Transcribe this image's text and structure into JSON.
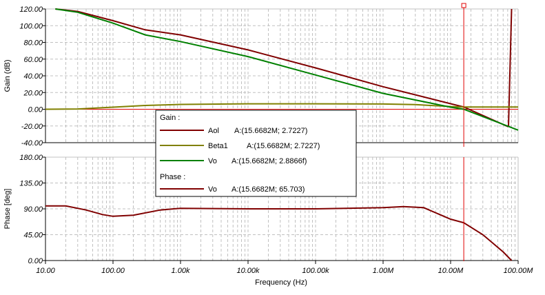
{
  "colors": {
    "aol": "#800000",
    "beta1": "#808000",
    "vo": "#008000",
    "phase_vo": "#800000",
    "cursor": "#e00000",
    "grid": "#c0c0c0"
  },
  "chart_data": [
    {
      "type": "line",
      "title": "",
      "ylabel": "Gain (dB)",
      "xscale": "log",
      "xlim": [
        10,
        100000000
      ],
      "ylim": [
        -40,
        120
      ],
      "yticks": [
        "120.00",
        "100.00",
        "80.00",
        "60.00",
        "40.00",
        "20.00",
        "0.00",
        "-20.00",
        "-40.00"
      ],
      "grid": true,
      "series": [
        {
          "name": "Aol",
          "x": [
            14,
            30,
            100,
            300,
            1000,
            10000,
            100000,
            1000000,
            10000000,
            15668200,
            70000000,
            72000000,
            80000000
          ],
          "values": [
            120,
            117,
            106,
            95,
            89,
            71,
            49.5,
            27,
            6.6,
            2.7227,
            -20.6,
            -20.6,
            120
          ]
        },
        {
          "name": "Beta1",
          "x": [
            10,
            30,
            100,
            300,
            1000,
            10000,
            100000,
            1000000,
            3000000,
            10000000,
            15668200,
            100000000
          ],
          "values": [
            0,
            0.3,
            2.5,
            4.5,
            5.8,
            6.5,
            6.5,
            6.3,
            5.5,
            3.2,
            2.7227,
            2.7
          ]
        },
        {
          "name": "Vo",
          "x": [
            14,
            30,
            100,
            300,
            1000,
            10000,
            100000,
            1000000,
            10000000,
            15668200,
            100000000
          ],
          "values": [
            120,
            116,
            103,
            89,
            81,
            63,
            41,
            19,
            2.5,
            0,
            -25
          ]
        }
      ]
    },
    {
      "type": "line",
      "xlabel": "Frequency (Hz)",
      "ylabel": "Phase [deg]",
      "xscale": "log",
      "xlim": [
        10,
        100000000
      ],
      "ylim": [
        0,
        180
      ],
      "yticks": [
        "180.00",
        "135.00",
        "90.00",
        "45.00",
        "0.00"
      ],
      "xticks": [
        "10.00",
        "100.00",
        "1.00k",
        "10.00k",
        "100.00k",
        "1.00M",
        "10.00M",
        "100.00M"
      ],
      "grid": true,
      "series": [
        {
          "name": "Vo",
          "x": [
            10,
            20,
            40,
            70,
            100,
            200,
            500,
            1000,
            10000,
            100000,
            1000000,
            2000000,
            4000000,
            10000000,
            15668200,
            30000000,
            60000000,
            80000000
          ],
          "values": [
            95,
            95,
            88,
            80,
            77,
            79,
            88,
            91,
            90,
            90,
            92,
            94,
            92,
            72,
            65.703,
            45,
            15,
            0
          ]
        }
      ]
    }
  ],
  "cursor": {
    "frequency": 15668200
  },
  "legend": {
    "gain_header": "Gain :",
    "phase_header": "Phase :",
    "entries": [
      {
        "name": "Aol",
        "readout": "A:(15.6682M; 2.7227)"
      },
      {
        "name": "Beta1",
        "readout": "A:(15.6682M; 2.7227)"
      },
      {
        "name": "Vo",
        "readout": "A:(15.6682M; 2.8866f)"
      },
      {
        "name": "Vo",
        "readout": "A:(15.6682M; 65.703)"
      }
    ]
  }
}
